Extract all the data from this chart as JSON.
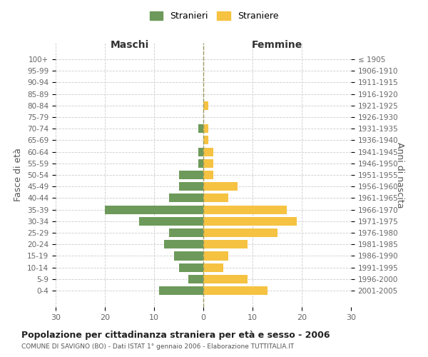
{
  "age_groups": [
    "100+",
    "95-99",
    "90-94",
    "85-89",
    "80-84",
    "75-79",
    "70-74",
    "65-69",
    "60-64",
    "55-59",
    "50-54",
    "45-49",
    "40-44",
    "35-39",
    "30-34",
    "25-29",
    "20-24",
    "15-19",
    "10-14",
    "5-9",
    "0-4"
  ],
  "birth_years": [
    "≤ 1905",
    "1906-1910",
    "1911-1915",
    "1916-1920",
    "1921-1925",
    "1926-1930",
    "1931-1935",
    "1936-1940",
    "1941-1945",
    "1946-1950",
    "1951-1955",
    "1956-1960",
    "1961-1965",
    "1966-1970",
    "1971-1975",
    "1976-1980",
    "1981-1985",
    "1986-1990",
    "1991-1995",
    "1996-2000",
    "2001-2005"
  ],
  "maschi": [
    0,
    0,
    0,
    0,
    0,
    0,
    1,
    0,
    1,
    1,
    5,
    5,
    7,
    20,
    13,
    7,
    8,
    6,
    5,
    3,
    9
  ],
  "femmine": [
    0,
    0,
    0,
    0,
    1,
    0,
    1,
    1,
    2,
    2,
    2,
    7,
    5,
    17,
    19,
    15,
    9,
    5,
    4,
    9,
    13
  ],
  "color_maschi": "#6d9a5a",
  "color_femmine": "#f5c242",
  "background_color": "#ffffff",
  "grid_color": "#cccccc",
  "title": "Popolazione per cittadinanza straniera per età e sesso - 2006",
  "subtitle": "COMUNE DI SAVIGNO (BO) - Dati ISTAT 1° gennaio 2006 - Elaborazione TUTTITALIA.IT",
  "label_maschi": "Maschi",
  "label_femmine": "Femmine",
  "ylabel_left": "Fasce di età",
  "ylabel_right": "Anni di nascita",
  "legend_maschi": "Stranieri",
  "legend_femmine": "Straniere",
  "xlim": 30,
  "dashed_line_color": "#9a9a60"
}
